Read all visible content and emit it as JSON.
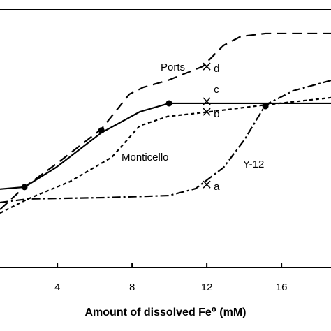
{
  "chart_data": {
    "type": "line",
    "x_label": "Amount of dissolved Fe⁰ (mM)",
    "xlim": [
      0.93,
      18.65
    ],
    "ylim": [
      0,
      100
    ],
    "xticks": [
      4,
      8,
      12,
      16
    ],
    "color": "#000000",
    "series": [
      {
        "name": "Ports",
        "dash": "14,8",
        "x": [
          0.93,
          2.24,
          3.93,
          6.36,
          7.85,
          8.6,
          9.91,
          11.78,
          12.9,
          13.83,
          15.14,
          18.65
        ],
        "values": [
          22.5,
          31.2,
          40.1,
          53.7,
          67.2,
          69.9,
          72.6,
          78.0,
          86.2,
          89.7,
          90.8,
          90.8
        ]
      },
      {
        "dash": "none",
        "x": [
          0.93,
          2.24,
          3.93,
          6.36,
          8.41,
          9.98,
          12.15,
          15.14,
          18.65
        ],
        "values": [
          30.4,
          31.2,
          38.8,
          52.3,
          60.4,
          63.7,
          63.7,
          63.7,
          63.7
        ]
      },
      {
        "name": "Monticello",
        "dash": "5,4",
        "x": [
          0.93,
          2.43,
          4.67,
          6.92,
          8.41,
          9.91,
          12.15,
          15.14,
          18.65
        ],
        "values": [
          21.1,
          26.6,
          33.3,
          42.8,
          55.0,
          58.6,
          60.4,
          63.1,
          65.9
        ]
      },
      {
        "name": "Y-12",
        "dash": "12,4,3,4",
        "x": [
          0.93,
          2.43,
          6.54,
          9.98,
          11.4,
          12.9,
          14.02,
          15.14,
          16.64,
          18.65
        ],
        "values": [
          25.2,
          26.6,
          27.1,
          27.9,
          30.6,
          38.8,
          49.6,
          63.1,
          68.6,
          72.6
        ]
      }
    ],
    "dots": {
      "x": [
        2.24,
        6.36,
        9.98,
        15.14
      ],
      "values": [
        31.2,
        53.2,
        63.7,
        62.6
      ]
    },
    "crosses": {
      "labels": [
        "a",
        "b",
        "c",
        "d"
      ],
      "x": [
        12,
        12,
        12,
        12
      ],
      "values": [
        32.2,
        60.4,
        64.5,
        78.0
      ]
    }
  }
}
